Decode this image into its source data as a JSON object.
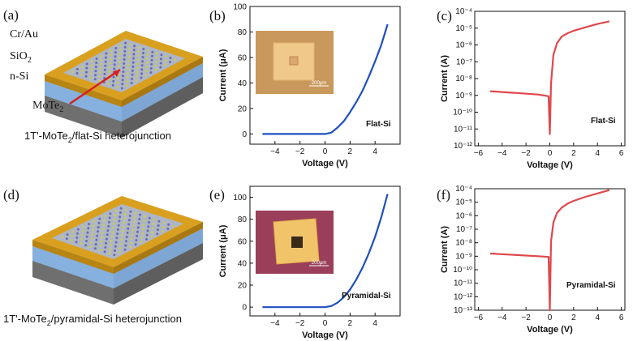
{
  "panels": {
    "a": {
      "letter": "(a)",
      "caption_main": "1T'-MoTe",
      "caption_sub": "2",
      "caption_rest": "/flat-Si heterojunction"
    },
    "d": {
      "letter": "(d)",
      "caption_main": "1T'-MoTe",
      "caption_sub": "2",
      "caption_rest": "/pyramidal-Si heterojunction"
    }
  },
  "device_labels": {
    "cr_au": "Cr/Au",
    "sio2_main": "SiO",
    "sio2_sub": "2",
    "n_si": "n-Si",
    "mote2_main": "MoTe",
    "mote2_sub": "2"
  },
  "colors": {
    "linear_curve": "#1f4fbf",
    "log_curve": "#e0474c",
    "electrode_gold": "#d9a020",
    "sio2_blue": "#9ec3ea",
    "silicon_gray": "#7d7d7d",
    "arrow_red": "#d62020",
    "inset_flat_bg": "#c9985c",
    "inset_pyr_bg": "#9a3f5a"
  },
  "chart_data": [
    {
      "id": "b",
      "letter": "(b)",
      "type": "line",
      "yscale": "linear",
      "xlabel": "Voltage (V)",
      "ylabel": "Current (μA)",
      "xlim": [
        -6,
        6
      ],
      "ylim": [
        -8,
        100
      ],
      "xticks": [
        -4,
        -2,
        0,
        2,
        4
      ],
      "yticks": [
        0,
        20,
        40,
        60,
        80,
        100
      ],
      "annotation": "Flat-Si",
      "inset_scale": "200μm",
      "inset": "flat",
      "series": [
        {
          "x": [
            -5,
            -4,
            -3,
            -2,
            -1,
            0,
            0.5,
            1,
            1.5,
            2,
            2.5,
            3,
            3.5,
            4,
            4.5,
            5
          ],
          "y": [
            0,
            0,
            0,
            0,
            0,
            0,
            1,
            5,
            10,
            17,
            25,
            34,
            45,
            57,
            70,
            86
          ]
        }
      ]
    },
    {
      "id": "c",
      "letter": "(c)",
      "type": "line",
      "yscale": "log",
      "xlabel": "Voltage (V)",
      "ylabel": "Current (A)",
      "xlim": [
        -6.3,
        6.3
      ],
      "ylim_exp": [
        -12,
        -4
      ],
      "xticks": [
        -6,
        -4,
        -2,
        0,
        2,
        4,
        6
      ],
      "ytick_exps": [
        -12,
        -11,
        -10,
        -9,
        -8,
        -7,
        -6,
        -5,
        -4
      ],
      "annotation": "Flat-Si",
      "series": [
        {
          "x": [
            -5,
            -3,
            -1,
            -0.1,
            0,
            0.1,
            0.3,
            0.6,
            1,
            1.5,
            2,
            3,
            4,
            5
          ],
          "yexp": [
            -8.75,
            -8.85,
            -8.95,
            -9.05,
            -11.3,
            -8.3,
            -6.6,
            -5.9,
            -5.5,
            -5.3,
            -5.15,
            -4.95,
            -4.75,
            -4.6
          ]
        }
      ]
    },
    {
      "id": "e",
      "letter": "(e)",
      "type": "line",
      "yscale": "linear",
      "xlabel": "Voltage (V)",
      "ylabel": "Current (μA)",
      "xlim": [
        -6,
        6
      ],
      "ylim": [
        -8,
        110
      ],
      "xticks": [
        -4,
        -2,
        0,
        2,
        4
      ],
      "yticks": [
        0,
        20,
        40,
        60,
        80,
        100
      ],
      "annotation": "Pyramidal-Si",
      "inset_scale": "200μm",
      "inset": "pyramidal",
      "series": [
        {
          "x": [
            -5,
            -4,
            -3,
            -2,
            -1,
            0,
            0.5,
            1,
            1.5,
            2,
            2.5,
            3,
            3.5,
            4,
            4.5,
            5
          ],
          "y": [
            0,
            0,
            0,
            0,
            0,
            0,
            1,
            4,
            9,
            16,
            25,
            36,
            49,
            64,
            82,
            103
          ]
        }
      ]
    },
    {
      "id": "f",
      "letter": "(f)",
      "type": "line",
      "yscale": "log",
      "xlabel": "Voltage (V)",
      "ylabel": "Current (A)",
      "xlim": [
        -6.3,
        6.3
      ],
      "ylim_exp": [
        -13,
        -4
      ],
      "xticks": [
        -6,
        -4,
        -2,
        0,
        2,
        4,
        6
      ],
      "ytick_exps": [
        -13,
        -12,
        -11,
        -10,
        -9,
        -8,
        -7,
        -6,
        -5,
        -4
      ],
      "annotation": "Pyramidal-Si",
      "series": [
        {
          "x": [
            -5,
            -3,
            -1,
            -0.1,
            0,
            0.1,
            0.3,
            0.6,
            1,
            1.5,
            2,
            3,
            4,
            5
          ],
          "yexp": [
            -8.8,
            -8.9,
            -9.0,
            -9.05,
            -13,
            -7.9,
            -6.5,
            -5.8,
            -5.4,
            -5.1,
            -4.9,
            -4.6,
            -4.35,
            -4.1
          ]
        }
      ]
    }
  ]
}
